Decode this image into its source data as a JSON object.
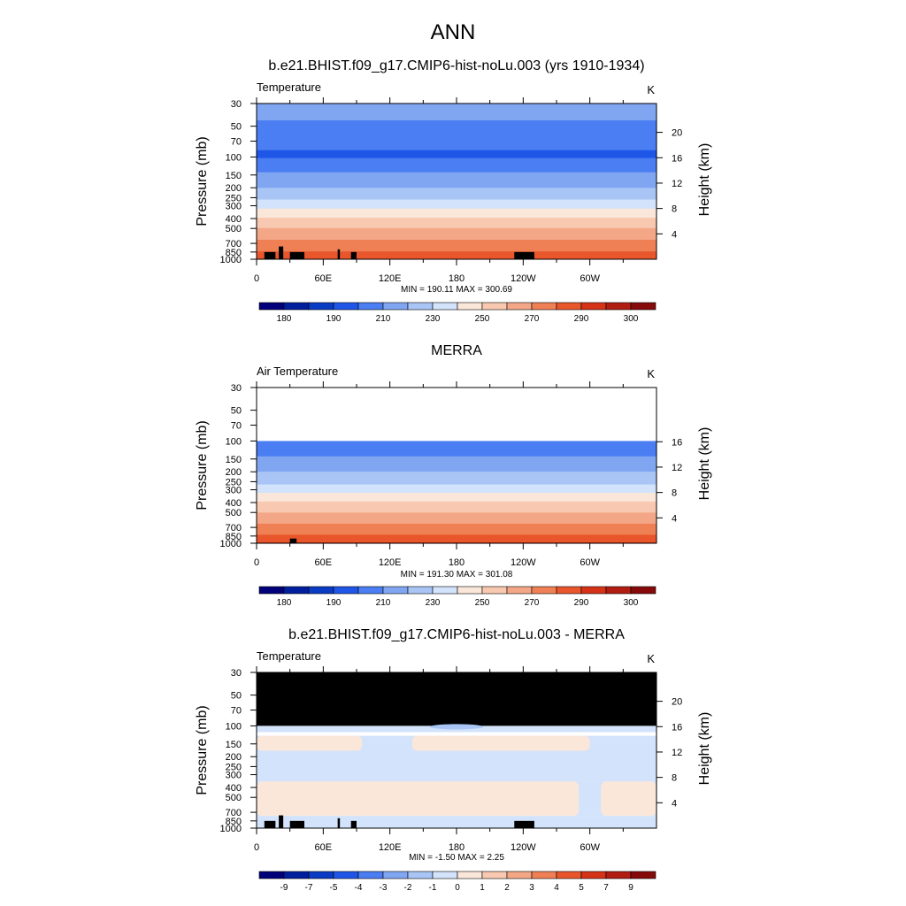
{
  "figure": {
    "title": "ANN"
  },
  "chart_data": [
    {
      "type": "heatmap",
      "title": "b.e21.BHIST.f09_g17.CMIP6-hist-noLu.003 (yrs 1910-1934)",
      "left_label": "Temperature",
      "units": "K",
      "ylabel": "Pressure (mb)",
      "ylabel_right": "Height (km)",
      "y_log": true,
      "ylim": [
        1000,
        30
      ],
      "y_ticks": [
        "30",
        "50",
        "70",
        "100",
        "150",
        "200",
        "250",
        "300",
        "400",
        "500",
        "700",
        "850",
        "1000"
      ],
      "y_tick_values": [
        30,
        50,
        70,
        100,
        150,
        200,
        250,
        300,
        400,
        500,
        700,
        850,
        1000
      ],
      "height_ticks": [
        "4",
        "8",
        "12",
        "16",
        "20"
      ],
      "height_tick_values": [
        4,
        8,
        12,
        16,
        20
      ],
      "x_ticks": [
        "0",
        "60E",
        "120E",
        "180",
        "120W",
        "60W"
      ],
      "x_tick_values": [
        0,
        60,
        120,
        180,
        240,
        300
      ],
      "xlim": [
        0,
        360
      ],
      "stats": "MIN = 190.11  MAX = 300.69",
      "levels": [
        175,
        180,
        185,
        190,
        200,
        210,
        220,
        230,
        240,
        250,
        260,
        270,
        280,
        290,
        295,
        300
      ],
      "colorbar_labels": [
        "180",
        "190",
        "210",
        "230",
        "250",
        "270",
        "290",
        "300"
      ],
      "profile": {
        "pressure": [
          30,
          40,
          50,
          60,
          70,
          85,
          100,
          125,
          150,
          175,
          200,
          250,
          300,
          350,
          400,
          500,
          600,
          700,
          850,
          925,
          1000
        ],
        "values": [
          213,
          212,
          207,
          204,
          202,
          200,
          199,
          205,
          212,
          217,
          220,
          227,
          237,
          244,
          251,
          260,
          267,
          273,
          281,
          285,
          289
        ]
      },
      "data_start_pressure": null,
      "topography": [
        [
          7,
          17,
          850
        ],
        [
          20,
          24,
          750
        ],
        [
          30,
          43,
          850
        ],
        [
          73,
          75,
          800
        ],
        [
          85,
          90,
          850
        ],
        [
          232,
          250,
          850
        ]
      ]
    },
    {
      "type": "heatmap",
      "title": "MERRA",
      "left_label": "Air Temperature",
      "units": "K",
      "ylabel": "Pressure (mb)",
      "ylabel_right": "Height (km)",
      "y_log": true,
      "ylim": [
        1000,
        30
      ],
      "y_ticks": [
        "30",
        "50",
        "70",
        "100",
        "150",
        "200",
        "250",
        "300",
        "400",
        "500",
        "700",
        "850",
        "1000"
      ],
      "y_tick_values": [
        30,
        50,
        70,
        100,
        150,
        200,
        250,
        300,
        400,
        500,
        700,
        850,
        1000
      ],
      "height_ticks": [
        "4",
        "8",
        "12",
        "16"
      ],
      "height_tick_values": [
        4,
        8,
        12,
        16
      ],
      "x_ticks": [
        "0",
        "60E",
        "120E",
        "180",
        "120W",
        "60W"
      ],
      "x_tick_values": [
        0,
        60,
        120,
        180,
        240,
        300
      ],
      "xlim": [
        0,
        360
      ],
      "stats": "MIN = 191.30  MAX = 301.08",
      "levels": [
        175,
        180,
        185,
        190,
        200,
        210,
        220,
        230,
        240,
        250,
        260,
        270,
        280,
        290,
        295,
        300
      ],
      "colorbar_labels": [
        "180",
        "190",
        "210",
        "230",
        "250",
        "270",
        "290",
        "300"
      ],
      "profile": {
        "pressure": [
          100,
          125,
          150,
          175,
          200,
          250,
          300,
          350,
          400,
          500,
          600,
          700,
          850,
          925,
          1000
        ],
        "values": [
          200,
          206,
          212,
          217,
          220,
          227,
          237,
          244,
          251,
          260,
          267,
          273,
          281,
          286,
          291
        ]
      },
      "data_start_pressure": 100,
      "topography": [
        [
          30,
          36,
          900
        ]
      ]
    },
    {
      "type": "heatmap",
      "title": "b.e21.BHIST.f09_g17.CMIP6-hist-noLu.003 - MERRA",
      "left_label": "Temperature",
      "units": "K",
      "ylabel": "Pressure (mb)",
      "ylabel_right": "Height (km)",
      "y_log": true,
      "ylim": [
        1000,
        30
      ],
      "y_ticks": [
        "30",
        "50",
        "70",
        "100",
        "150",
        "200",
        "250",
        "300",
        "400",
        "500",
        "700",
        "850",
        "1000"
      ],
      "y_tick_values": [
        30,
        50,
        70,
        100,
        150,
        200,
        250,
        300,
        400,
        500,
        700,
        850,
        1000
      ],
      "height_ticks": [
        "4",
        "8",
        "12",
        "16",
        "20"
      ],
      "height_tick_values": [
        4,
        8,
        12,
        16,
        20
      ],
      "x_ticks": [
        "0",
        "60E",
        "120E",
        "180",
        "120W",
        "60W"
      ],
      "x_tick_values": [
        0,
        60,
        120,
        180,
        240,
        300
      ],
      "xlim": [
        0,
        360
      ],
      "stats": "MIN =  -1.50  MAX =   2.25",
      "levels": [
        -10,
        -9,
        -7,
        -5,
        -4,
        -3,
        -2,
        -1,
        0,
        1,
        2,
        3,
        4,
        5,
        7,
        9
      ],
      "colorbar_labels": [
        "-9",
        "-7",
        "-5",
        "-4",
        "-3",
        "-2",
        "-1",
        "0",
        "1",
        "2",
        "3",
        "4",
        "5",
        "7",
        "9"
      ],
      "missing_above_pressure": 100,
      "difference_bands": [
        {
          "p_top": 100,
          "p_bottom": 115,
          "sign": "neg"
        },
        {
          "p_top": 125,
          "p_bottom": 175,
          "sign": "pos",
          "x_ranges": [
            [
              0,
              95
            ],
            [
              140,
              300
            ]
          ]
        },
        {
          "p_top": 175,
          "p_bottom": 350,
          "sign": "neg"
        },
        {
          "p_top": 350,
          "p_bottom": 760,
          "sign": "pos",
          "x_ranges": [
            [
              0,
              290
            ],
            [
              310,
              360
            ]
          ]
        },
        {
          "p_top": 760,
          "p_bottom": 1000,
          "sign": "neg"
        }
      ],
      "topography": [
        [
          7,
          17,
          850
        ],
        [
          20,
          24,
          750
        ],
        [
          30,
          43,
          850
        ],
        [
          73,
          75,
          800
        ],
        [
          85,
          90,
          850
        ],
        [
          232,
          250,
          850
        ]
      ]
    }
  ],
  "colors": {
    "palette": [
      "#00007a",
      "#001f9e",
      "#0a3bc4",
      "#1f56e8",
      "#4a7ef2",
      "#80a6f2",
      "#a9c5f5",
      "#d2e3fb",
      "#fbe7da",
      "#f8c9b0",
      "#f3a787",
      "#ef8055",
      "#e9562c",
      "#d63217",
      "#b21d12",
      "#860a0a"
    ],
    "topography": "#000000",
    "missing": "#000000"
  }
}
